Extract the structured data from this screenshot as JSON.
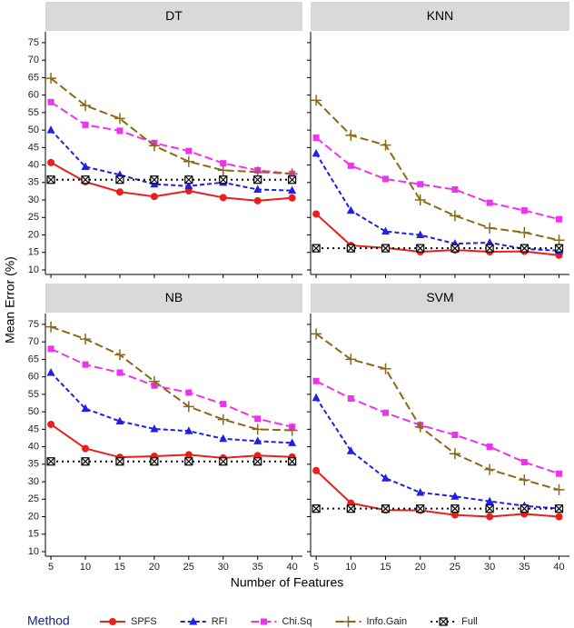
{
  "chart_data": {
    "type": "line",
    "x_label": "Number of Features",
    "y_label": "Mean Error (%)",
    "legend_title": "Method",
    "x": [
      5,
      10,
      15,
      20,
      25,
      30,
      35,
      40
    ],
    "xlim": [
      4.2,
      41.5
    ],
    "xticks": [
      5,
      10,
      15,
      20,
      25,
      30,
      35,
      40
    ],
    "ylim": [
      8.7,
      78.1
    ],
    "yticks": [
      10,
      15,
      20,
      25,
      30,
      35,
      40,
      45,
      50,
      55,
      60,
      65,
      70,
      75
    ],
    "series": [
      {
        "name": "SPFS",
        "color": "#e8201a",
        "dash": "solid",
        "marker": "circle"
      },
      {
        "name": "RFI",
        "color": "#1f1fe6",
        "dash": "dashed",
        "marker": "triangle"
      },
      {
        "name": "Chi.Sq",
        "color": "#ee33ee",
        "dash": "longdash",
        "marker": "square"
      },
      {
        "name": "Info.Gain",
        "color": "#8b6914",
        "dash": "longdash",
        "marker": "plus"
      },
      {
        "name": "Full",
        "color": "#000000",
        "dash": "dotted",
        "marker": "boxx"
      }
    ],
    "facets": [
      {
        "title": "DT",
        "series": [
          {
            "values": [
              40.7,
              35.2,
              32.3,
              31,
              32.6,
              30.7,
              29.8,
              30.6
            ]
          },
          {
            "values": [
              50,
              39.5,
              37.2,
              34.5,
              34,
              35,
              33,
              32.7
            ]
          },
          {
            "values": [
              58,
              51.5,
              49.8,
              46.3,
              44,
              40.5,
              38.5,
              37.5
            ]
          },
          {
            "values": [
              64.8,
              57,
              53.3,
              45.5,
              41,
              38.5,
              38,
              37.5
            ]
          },
          {
            "values": [
              35.8,
              35.8,
              35.8,
              35.8,
              35.8,
              35.8,
              35.8,
              35.8
            ]
          }
        ]
      },
      {
        "title": "KNN",
        "series": [
          {
            "values": [
              26,
              17,
              16.3,
              15.2,
              15.7,
              15.2,
              15.3,
              14.2
            ]
          },
          {
            "values": [
              43.3,
              27,
              21,
              20,
              17.5,
              17.8,
              16,
              15.5
            ]
          },
          {
            "values": [
              47.8,
              39.8,
              36,
              34.5,
              33,
              29.2,
              27,
              24.5
            ]
          },
          {
            "values": [
              58.5,
              48.5,
              45.7,
              30,
              25.5,
              22,
              20.7,
              18.5
            ]
          },
          {
            "values": [
              16.2,
              16.2,
              16.2,
              16.2,
              16.2,
              16.2,
              16.2,
              16.2
            ]
          }
        ]
      },
      {
        "title": "NB",
        "series": [
          {
            "values": [
              46.4,
              39.5,
              37,
              37.3,
              37.7,
              36.8,
              37.5,
              37.1
            ]
          },
          {
            "values": [
              61.2,
              50.9,
              47.3,
              45.1,
              44.5,
              42.3,
              41.6,
              41.1
            ]
          },
          {
            "values": [
              68,
              63.5,
              61.2,
              57.5,
              55.5,
              52.2,
              48,
              45.7
            ]
          },
          {
            "values": [
              74.3,
              70.8,
              66.3,
              58.7,
              51.5,
              47.8,
              45,
              44.7
            ]
          },
          {
            "values": [
              35.8,
              35.8,
              35.8,
              35.8,
              35.8,
              35.8,
              35.8,
              35.8
            ]
          }
        ]
      },
      {
        "title": "SVM",
        "series": [
          {
            "values": [
              33.2,
              23.9,
              21.9,
              21.8,
              20.5,
              20,
              20.8,
              20
            ]
          },
          {
            "values": [
              54,
              38.8,
              31,
              26.9,
              25.8,
              24.4,
              23.1,
              22.3
            ]
          },
          {
            "values": [
              58.8,
              53.8,
              49.7,
              46.2,
              43.4,
              40,
              35.6,
              32.3
            ]
          },
          {
            "values": [
              72.3,
              65,
              62.3,
              45.7,
              38,
              33.5,
              30.5,
              27.7
            ]
          },
          {
            "values": [
              22.3,
              22.3,
              22.3,
              22.3,
              22.3,
              22.3,
              22.3,
              22.3
            ]
          }
        ]
      }
    ]
  }
}
